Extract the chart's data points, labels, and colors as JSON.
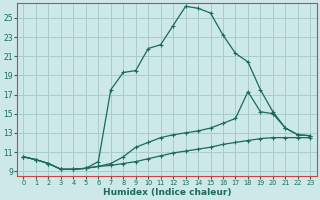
{
  "xlabel": "Humidex (Indice chaleur)",
  "bg_color": "#cce8e8",
  "grid_color": "#aacccc",
  "line_color": "#1a6b5a",
  "spine_color": "#cc4444",
  "xlim": [
    -0.5,
    23.5
  ],
  "ylim": [
    8.5,
    26.5
  ],
  "xticks": [
    0,
    1,
    2,
    3,
    4,
    5,
    6,
    7,
    8,
    9,
    10,
    11,
    12,
    13,
    14,
    15,
    16,
    17,
    18,
    19,
    20,
    21,
    22,
    23
  ],
  "yticks": [
    9,
    11,
    13,
    15,
    17,
    19,
    21,
    23,
    25
  ],
  "line1_x": [
    0,
    1,
    2,
    3,
    4,
    5,
    6,
    7,
    8,
    9,
    10,
    11,
    12,
    13,
    14,
    15,
    16,
    17,
    18,
    19,
    20,
    21,
    22,
    23
  ],
  "line1_y": [
    10.5,
    10.2,
    9.8,
    9.2,
    9.2,
    9.3,
    10.0,
    17.5,
    19.3,
    19.5,
    21.8,
    22.2,
    24.2,
    26.2,
    26.0,
    25.5,
    23.2,
    21.3,
    20.4,
    17.5,
    15.2,
    13.5,
    12.8,
    12.7
  ],
  "line2_x": [
    0,
    1,
    2,
    3,
    4,
    5,
    6,
    7,
    8,
    9,
    10,
    11,
    12,
    13,
    14,
    15,
    16,
    17,
    18,
    19,
    20,
    21,
    22,
    23
  ],
  "line2_y": [
    10.5,
    10.2,
    9.8,
    9.2,
    9.2,
    9.3,
    9.5,
    9.8,
    10.5,
    11.5,
    12.0,
    12.5,
    12.8,
    13.0,
    13.2,
    13.5,
    14.0,
    14.5,
    17.3,
    15.2,
    15.0,
    13.5,
    12.8,
    12.7
  ],
  "line3_x": [
    0,
    1,
    2,
    3,
    4,
    5,
    6,
    7,
    8,
    9,
    10,
    11,
    12,
    13,
    14,
    15,
    16,
    17,
    18,
    19,
    20,
    21,
    22,
    23
  ],
  "line3_y": [
    10.5,
    10.2,
    9.8,
    9.2,
    9.2,
    9.3,
    9.5,
    9.6,
    9.8,
    10.0,
    10.3,
    10.6,
    10.9,
    11.1,
    11.3,
    11.5,
    11.8,
    12.0,
    12.2,
    12.4,
    12.5,
    12.5,
    12.5,
    12.5
  ]
}
